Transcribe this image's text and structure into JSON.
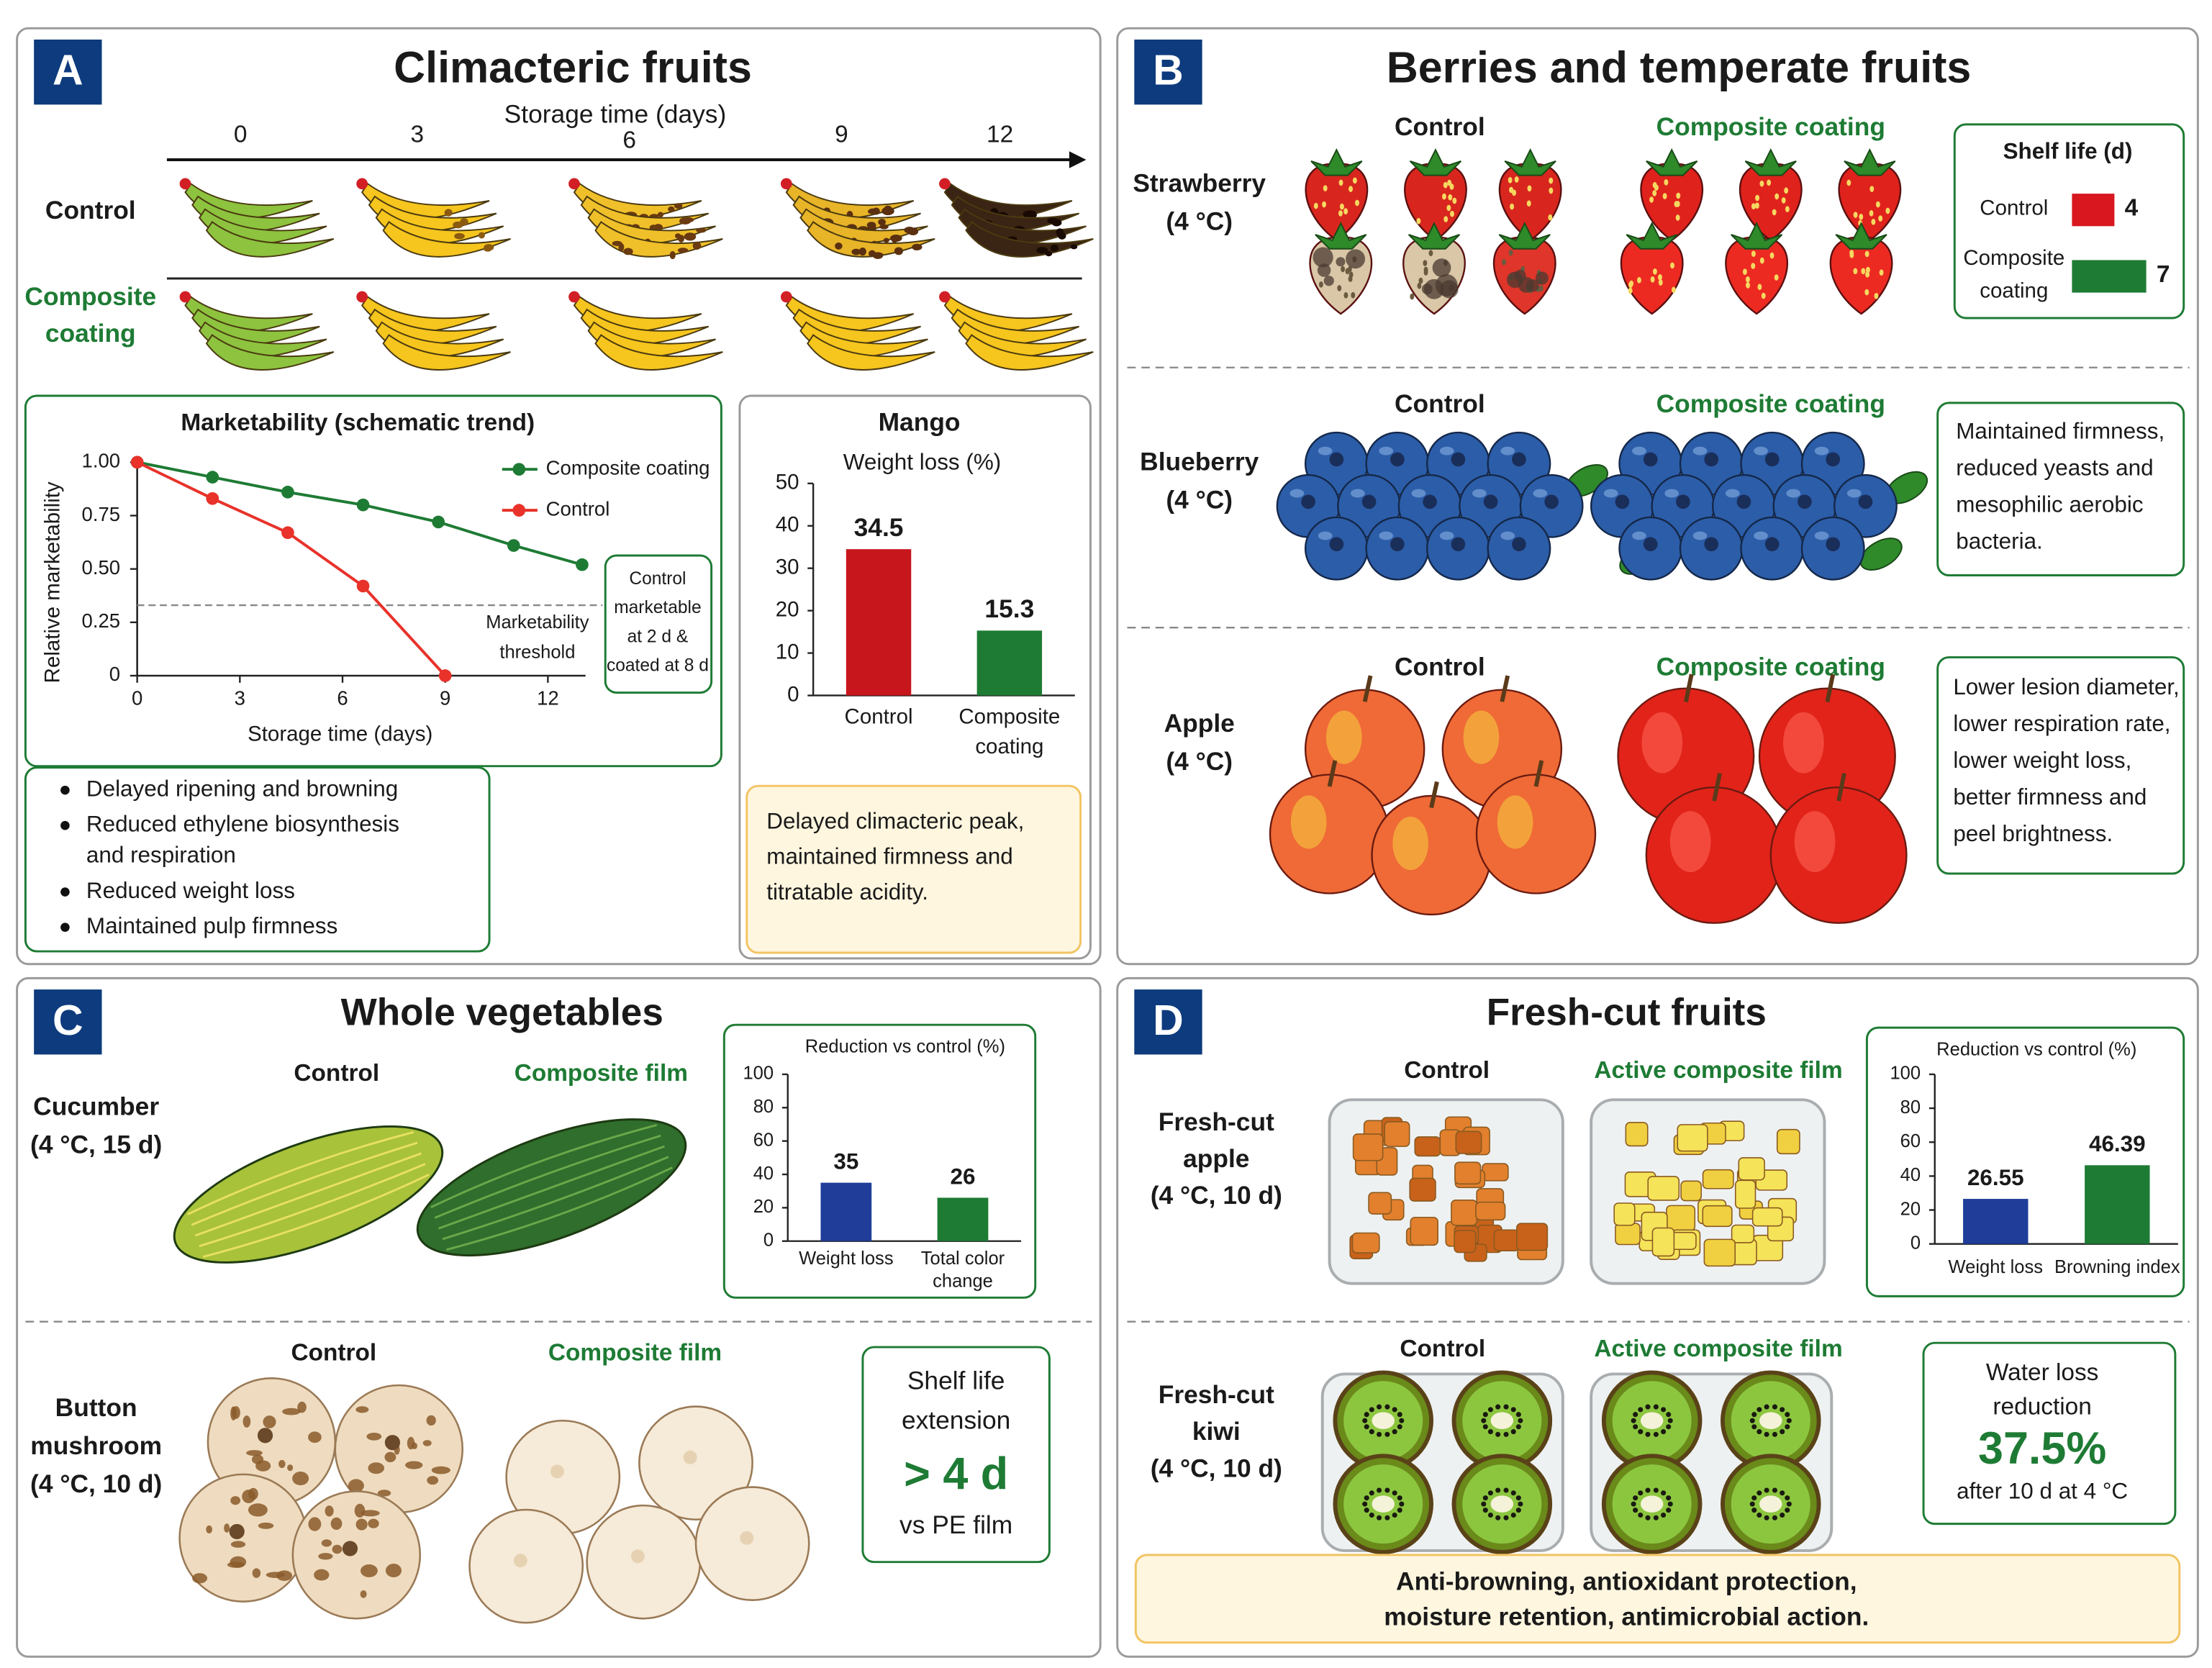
{
  "panels": [
    {
      "letter": "A",
      "title": "Climacteric fruits",
      "time_axis": "Storage time (days)",
      "days": [
        "0",
        "3",
        "6",
        "9",
        "12"
      ],
      "rows": [
        [
          "Control"
        ],
        [
          "Composite",
          "coating"
        ]
      ],
      "bullets": [
        [
          "Delayed ripening and browning"
        ],
        [
          "Reduced ethylene biosynthesis",
          "and respiration"
        ],
        [
          "Reduced weight loss"
        ],
        [
          "Maintained pulp firmness"
        ]
      ],
      "note": [
        "Delayed climacteric peak,",
        "maintained firmness and",
        "titratable acidity."
      ]
    },
    {
      "letter": "B",
      "title": "Berries and temperate fruits",
      "fruits": [
        {
          "name": [
            "Strawberry",
            "(4 °C)"
          ],
          "control": "Control",
          "treated": "Composite coating"
        },
        {
          "name": [
            "Blueberry",
            "(4 °C)"
          ],
          "control": "Control",
          "treated": "Composite coating",
          "note": [
            "Maintained firmness,",
            "reduced yeasts and",
            "mesophilic aerobic",
            "bacteria."
          ]
        },
        {
          "name": [
            "Apple",
            "(4 °C)"
          ],
          "control": "Control",
          "treated": "Composite coating",
          "note": [
            "Lower lesion diameter,",
            "lower respiration rate,",
            "lower weight loss,",
            "better firmness and",
            "peel brightness."
          ]
        }
      ]
    },
    {
      "letter": "C",
      "title": "Whole vegetables",
      "items": [
        {
          "name": [
            "Cucumber",
            "(4 °C, 15 d)"
          ],
          "control": "Control",
          "treated": "Composite film"
        },
        {
          "name": [
            "Button",
            "mushroom",
            "(4 °C, 10 d)"
          ],
          "control": "Control",
          "treated": "Composite film",
          "highlight": {
            "lines": [
              "Shelf life",
              "extension"
            ],
            "value": "> 4 d",
            "after": "vs PE film"
          }
        }
      ]
    },
    {
      "letter": "D",
      "title": "Fresh-cut fruits",
      "items": [
        {
          "name": [
            "Fresh-cut",
            "apple",
            "(4 °C, 10 d)"
          ],
          "control": "Control",
          "treated": "Active composite film"
        },
        {
          "name": [
            "Fresh-cut",
            "kiwi",
            "(4 °C, 10 d)"
          ],
          "control": "Control",
          "treated": "Active composite film",
          "highlight": {
            "lines": [
              "Water loss",
              "reduction"
            ],
            "value": "37.5%",
            "after": "after 10 d at 4 °C"
          }
        }
      ],
      "note": [
        "Anti-browning, antioxidant protection,",
        "moisture retention, antimicrobial action."
      ]
    }
  ],
  "chart_data": [
    {
      "type": "line",
      "title": "Marketability (schematic trend)",
      "xlabel": "Storage time (days)",
      "ylabel": "Relative marketability",
      "xlim": [
        0,
        13.1
      ],
      "ylim": [
        0,
        1
      ],
      "xticks": [
        0,
        3,
        6,
        9,
        12
      ],
      "yticks": [
        {
          "value": 1,
          "label": "1.00"
        },
        0.75,
        {
          "value": 0.5,
          "label": "0.50"
        },
        0.25,
        0
      ],
      "threshold": 0.33,
      "threshold_label": [
        "Marketability",
        "threshold"
      ],
      "annotation": [
        "Control",
        "marketable",
        "at 2 d &",
        "coated at 8 d"
      ],
      "series": [
        {
          "name": "Composite coating",
          "color": "#1e7b34",
          "x": [
            0,
            2.2,
            4.4,
            6.6,
            8.8,
            11,
            13
          ],
          "values": [
            1.0,
            0.93,
            0.86,
            0.8,
            0.72,
            0.61,
            0.52
          ]
        },
        {
          "name": "Control",
          "color": "#e8322a",
          "x": [
            0,
            2.2,
            4.4,
            6.6,
            9
          ],
          "values": [
            1.0,
            0.83,
            0.67,
            0.42,
            0
          ]
        }
      ]
    },
    {
      "type": "bar",
      "title": "Mango",
      "subtitle": "Weight loss (%)",
      "categories": [
        [
          "Control"
        ],
        [
          "Composite",
          "coating"
        ]
      ],
      "values": [
        34.5,
        15.3
      ],
      "colors": [
        "#c8161d",
        "#1e7b34"
      ],
      "ylim": [
        0,
        50
      ],
      "yticks": [
        0,
        10,
        20,
        30,
        40,
        50
      ]
    },
    {
      "type": "hbar",
      "title": "Shelf life (d)",
      "categories": [
        [
          "Control"
        ],
        [
          "Composite",
          "coating"
        ]
      ],
      "values": [
        4,
        7
      ],
      "colors": [
        "#d8171f",
        "#1e7b34"
      ]
    },
    {
      "type": "bar",
      "title": "Reduction vs control (%)",
      "categories": [
        [
          "Weight loss"
        ],
        [
          "Total color",
          "change"
        ]
      ],
      "values": [
        35,
        26
      ],
      "colors": [
        "#1f3d99",
        "#1e7b34"
      ],
      "ylim": [
        0,
        100
      ],
      "yticks": [
        0,
        20,
        40,
        60,
        80,
        100
      ]
    },
    {
      "type": "bar",
      "title": "Reduction vs control (%)",
      "categories": [
        [
          "Weight loss"
        ],
        [
          "Browning index"
        ]
      ],
      "values": [
        26.55,
        46.39
      ],
      "colors": [
        "#1f3d99",
        "#1e7b34"
      ],
      "ylim": [
        0,
        100
      ],
      "yticks": [
        0,
        20,
        40,
        60,
        80,
        100
      ]
    }
  ]
}
